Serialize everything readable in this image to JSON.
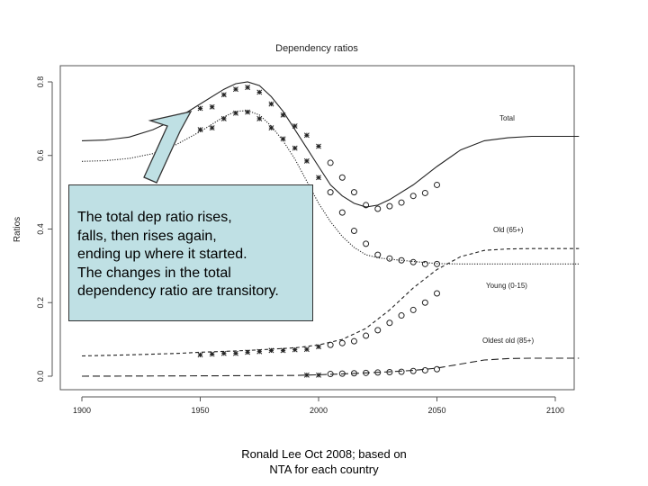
{
  "chart_data": {
    "type": "line",
    "title": "Dependency ratios",
    "xlabel": "",
    "ylabel": "Ratios",
    "xlim": [
      1900,
      2100
    ],
    "ylim": [
      0.0,
      0.8
    ],
    "x_ticks": [
      "1900",
      "1950",
      "2000",
      "2050",
      "2100"
    ],
    "y_ticks": [
      "0.0",
      "0.2",
      "0.4",
      "0.6",
      "0.8"
    ],
    "series": [
      {
        "name": "Total",
        "style": "solid",
        "points": [
          [
            1900,
            0.64
          ],
          [
            1910,
            0.642
          ],
          [
            1920,
            0.65
          ],
          [
            1930,
            0.67
          ],
          [
            1940,
            0.7
          ],
          [
            1950,
            0.74
          ],
          [
            1960,
            0.78
          ],
          [
            1965,
            0.795
          ],
          [
            1970,
            0.8
          ],
          [
            1975,
            0.79
          ],
          [
            1980,
            0.76
          ],
          [
            1985,
            0.72
          ],
          [
            1990,
            0.67
          ],
          [
            1995,
            0.62
          ],
          [
            2000,
            0.57
          ],
          [
            2005,
            0.52
          ],
          [
            2010,
            0.49
          ],
          [
            2015,
            0.47
          ],
          [
            2020,
            0.46
          ],
          [
            2025,
            0.465
          ],
          [
            2030,
            0.48
          ],
          [
            2040,
            0.52
          ],
          [
            2050,
            0.57
          ],
          [
            2060,
            0.615
          ],
          [
            2070,
            0.64
          ],
          [
            2080,
            0.648
          ],
          [
            2090,
            0.652
          ],
          [
            2100,
            0.652
          ],
          [
            2110,
            0.652
          ]
        ]
      },
      {
        "name": "Young (0-15)",
        "style": "dotted",
        "points": [
          [
            1900,
            0.584
          ],
          [
            1910,
            0.586
          ],
          [
            1920,
            0.592
          ],
          [
            1930,
            0.605
          ],
          [
            1940,
            0.63
          ],
          [
            1950,
            0.665
          ],
          [
            1960,
            0.705
          ],
          [
            1965,
            0.72
          ],
          [
            1970,
            0.722
          ],
          [
            1975,
            0.71
          ],
          [
            1980,
            0.68
          ],
          [
            1985,
            0.64
          ],
          [
            1990,
            0.59
          ],
          [
            1995,
            0.53
          ],
          [
            2000,
            0.47
          ],
          [
            2005,
            0.42
          ],
          [
            2010,
            0.38
          ],
          [
            2015,
            0.35
          ],
          [
            2020,
            0.33
          ],
          [
            2025,
            0.322
          ],
          [
            2030,
            0.318
          ],
          [
            2040,
            0.312
          ],
          [
            2050,
            0.306
          ],
          [
            2060,
            0.305
          ],
          [
            2080,
            0.305
          ],
          [
            2100,
            0.305
          ],
          [
            2110,
            0.305
          ]
        ]
      },
      {
        "name": "Old (65+)",
        "style": "dashed",
        "points": [
          [
            1900,
            0.055
          ],
          [
            1920,
            0.058
          ],
          [
            1940,
            0.062
          ],
          [
            1950,
            0.065
          ],
          [
            1970,
            0.07
          ],
          [
            1990,
            0.077
          ],
          [
            2000,
            0.085
          ],
          [
            2010,
            0.1
          ],
          [
            2020,
            0.13
          ],
          [
            2030,
            0.18
          ],
          [
            2040,
            0.24
          ],
          [
            2050,
            0.29
          ],
          [
            2060,
            0.325
          ],
          [
            2070,
            0.342
          ],
          [
            2080,
            0.346
          ],
          [
            2090,
            0.347
          ],
          [
            2100,
            0.347
          ],
          [
            2110,
            0.347
          ]
        ]
      },
      {
        "name": "Oldest old (85+)",
        "style": "longdash",
        "points": [
          [
            1900,
            0.0
          ],
          [
            1950,
            0.001
          ],
          [
            1990,
            0.002
          ],
          [
            2000,
            0.004
          ],
          [
            2010,
            0.006
          ],
          [
            2020,
            0.009
          ],
          [
            2030,
            0.012
          ],
          [
            2040,
            0.016
          ],
          [
            2050,
            0.022
          ],
          [
            2060,
            0.033
          ],
          [
            2070,
            0.044
          ],
          [
            2080,
            0.048
          ],
          [
            2090,
            0.049
          ],
          [
            2100,
            0.049
          ],
          [
            2110,
            0.049
          ]
        ]
      }
    ],
    "observed_total_x": [
      [
        1950,
        0.728
      ],
      [
        1955,
        0.732
      ],
      [
        1960,
        0.765
      ],
      [
        1965,
        0.78
      ],
      [
        1970,
        0.785
      ],
      [
        1975,
        0.772
      ],
      [
        1980,
        0.74
      ],
      [
        1985,
        0.71
      ],
      [
        1990,
        0.68
      ],
      [
        1995,
        0.655
      ],
      [
        2000,
        0.625
      ]
    ],
    "observed_total_o": [
      [
        2005,
        0.58
      ],
      [
        2010,
        0.54
      ],
      [
        2015,
        0.5
      ],
      [
        2020,
        0.465
      ],
      [
        2025,
        0.455
      ],
      [
        2030,
        0.462
      ],
      [
        2035,
        0.472
      ],
      [
        2040,
        0.49
      ],
      [
        2045,
        0.498
      ],
      [
        2050,
        0.52
      ]
    ],
    "observed_young_x": [
      [
        1950,
        0.67
      ],
      [
        1955,
        0.675
      ],
      [
        1960,
        0.7
      ],
      [
        1965,
        0.715
      ],
      [
        1970,
        0.718
      ],
      [
        1975,
        0.7
      ],
      [
        1980,
        0.675
      ],
      [
        1985,
        0.645
      ],
      [
        1990,
        0.62
      ],
      [
        1995,
        0.585
      ],
      [
        2000,
        0.54
      ]
    ],
    "observed_young_o": [
      [
        2005,
        0.5
      ],
      [
        2010,
        0.445
      ],
      [
        2015,
        0.395
      ],
      [
        2020,
        0.36
      ],
      [
        2025,
        0.33
      ],
      [
        2030,
        0.32
      ],
      [
        2035,
        0.315
      ],
      [
        2040,
        0.31
      ],
      [
        2045,
        0.305
      ],
      [
        2050,
        0.305
      ]
    ],
    "observed_old_x": [
      [
        1950,
        0.058
      ],
      [
        1955,
        0.06
      ],
      [
        1960,
        0.062
      ],
      [
        1965,
        0.062
      ],
      [
        1970,
        0.065
      ],
      [
        1975,
        0.067
      ],
      [
        1980,
        0.07
      ],
      [
        1985,
        0.07
      ],
      [
        1990,
        0.072
      ],
      [
        1995,
        0.073
      ],
      [
        2000,
        0.08
      ]
    ],
    "observed_old_o": [
      [
        2005,
        0.085
      ],
      [
        2010,
        0.09
      ],
      [
        2015,
        0.095
      ],
      [
        2020,
        0.11
      ],
      [
        2025,
        0.125
      ],
      [
        2030,
        0.145
      ],
      [
        2035,
        0.165
      ],
      [
        2040,
        0.18
      ],
      [
        2045,
        0.2
      ],
      [
        2050,
        0.225
      ]
    ],
    "observed_oldest_x": [
      [
        1995,
        0.003
      ],
      [
        2000,
        0.003
      ]
    ],
    "observed_oldest_o": [
      [
        2005,
        0.006
      ],
      [
        2010,
        0.007
      ],
      [
        2015,
        0.008
      ],
      [
        2020,
        0.009
      ],
      [
        2025,
        0.01
      ],
      [
        2030,
        0.011
      ],
      [
        2035,
        0.012
      ],
      [
        2040,
        0.014
      ],
      [
        2045,
        0.016
      ],
      [
        2050,
        0.019
      ]
    ]
  },
  "series_labels": {
    "total": "Total",
    "old": "Old (65+)",
    "young": "Young (0-15)",
    "oldest": "Oldest old (85+)"
  },
  "callout": {
    "lines": [
      "The total dep ratio rises,",
      "falls, then rises again,",
      "ending up where it started.",
      "The changes in the total",
      "dependency ratio are transitory."
    ]
  },
  "credit": {
    "line1": "Ronald Lee Oct 2008; based on",
    "line2": "NTA for each country"
  },
  "colors": {
    "callout_fill": "#bfe0e4",
    "arrow_fill": "#bfe0e4",
    "line": "#222222"
  }
}
